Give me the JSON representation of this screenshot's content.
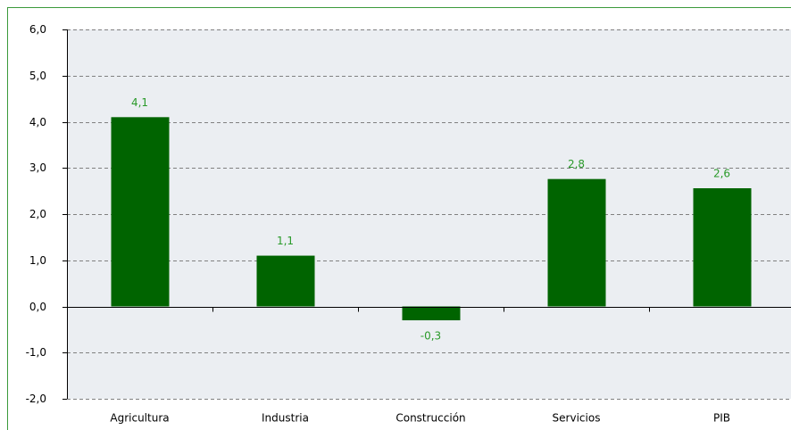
{
  "chart_data": {
    "type": "bar",
    "categories": [
      "Agricultura",
      "Industria",
      "Construcción",
      "Servicios",
      "PIB"
    ],
    "values": [
      4.1,
      1.1,
      -0.3,
      2.76,
      2.56
    ],
    "value_labels": [
      "4,1",
      "1,1",
      "-0,3",
      "2,8",
      "2,6"
    ],
    "color": "#006400",
    "ylim": [
      -2,
      6
    ],
    "yticks": [
      {
        "value": -2,
        "label": "-2,0"
      },
      {
        "value": -1,
        "label": "-1,0"
      },
      {
        "value": 0,
        "label": "0,0"
      },
      {
        "value": 1,
        "label": "1,0"
      },
      {
        "value": 2,
        "label": "2,0"
      },
      {
        "value": 3,
        "label": "3,0"
      },
      {
        "value": 4,
        "label": "4,0"
      },
      {
        "value": 5,
        "label": "5,0"
      },
      {
        "value": 6,
        "label": "6,0"
      }
    ],
    "grid": true
  }
}
